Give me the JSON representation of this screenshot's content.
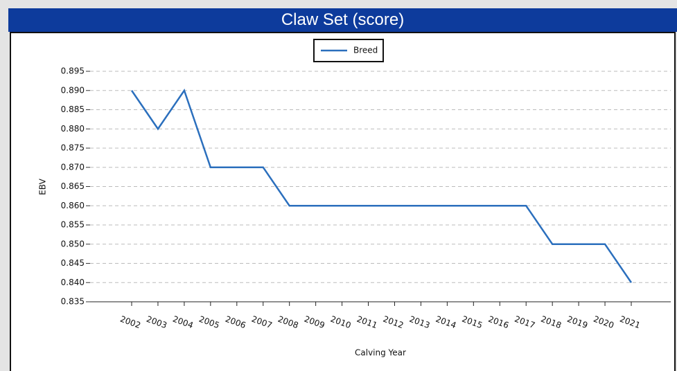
{
  "title": "Claw Set (score)",
  "chart_data": {
    "type": "line",
    "x_label": "Calving Year",
    "y_label": "EBV",
    "categories": [
      "2002",
      "2003",
      "2004",
      "2005",
      "2006",
      "2007",
      "2008",
      "2009",
      "2010",
      "2011",
      "2012",
      "2013",
      "2014",
      "2015",
      "2016",
      "2017",
      "2018",
      "2019",
      "2020",
      "2021"
    ],
    "series": [
      {
        "name": "Breed",
        "color": "#2b6fbd",
        "values": [
          0.89,
          0.88,
          0.89,
          0.87,
          0.87,
          0.87,
          0.86,
          0.86,
          0.86,
          0.86,
          0.86,
          0.86,
          0.86,
          0.86,
          0.86,
          0.86,
          0.85,
          0.85,
          0.85,
          0.84
        ]
      }
    ],
    "ylim": [
      0.835,
      0.895
    ],
    "yticks": [
      0.835,
      {
        "value": 0.84,
        "label": "0.840"
      },
      0.845,
      {
        "value": 0.85,
        "label": "0.850"
      },
      0.855,
      {
        "value": 0.86,
        "label": "0.860"
      },
      0.865,
      {
        "value": 0.87,
        "label": "0.870"
      },
      0.875,
      {
        "value": 0.88,
        "label": "0.880"
      },
      0.885,
      {
        "value": 0.89,
        "label": "0.890"
      },
      0.895
    ],
    "grid": true,
    "legend": "top"
  }
}
